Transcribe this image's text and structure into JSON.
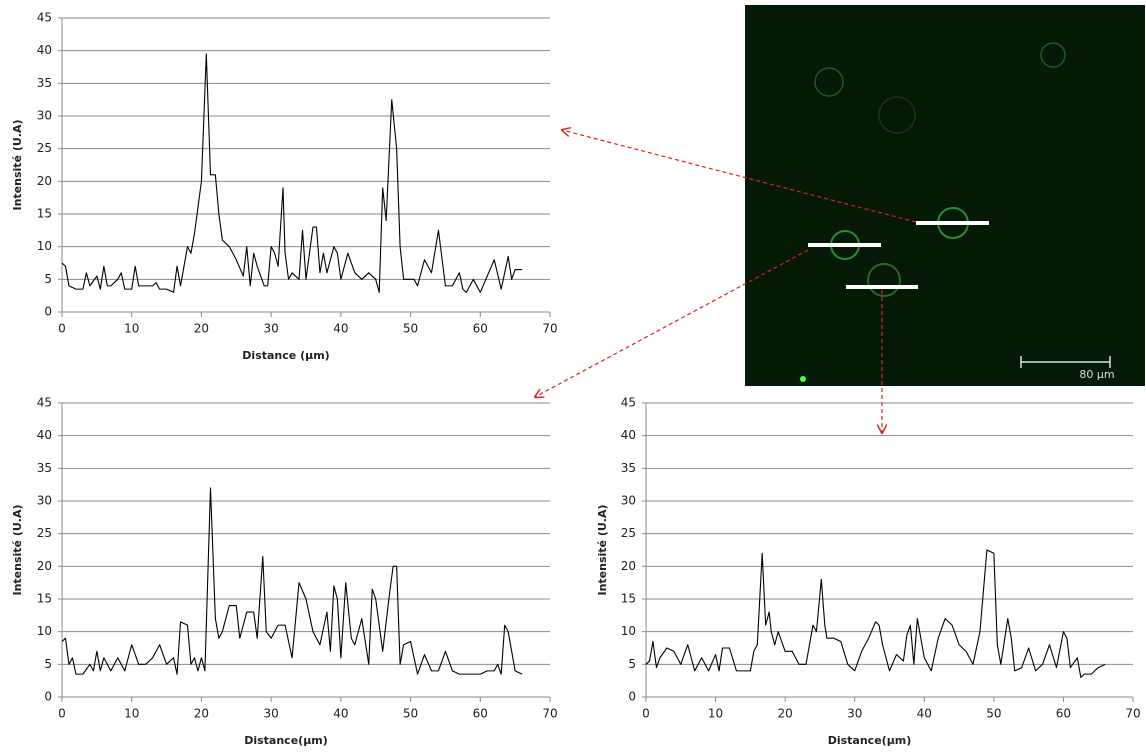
{
  "chart_data": [
    {
      "type": "line",
      "y_label": "Intensité (U.A)",
      "x_label": "Distance (µm)",
      "color": "#000000",
      "grid": true,
      "xlim": [
        0,
        70
      ],
      "ylim": [
        0,
        45
      ],
      "xticks": [
        0,
        10,
        20,
        30,
        40,
        50,
        60,
        70
      ],
      "yticks": [
        0,
        5,
        10,
        15,
        20,
        25,
        30,
        35,
        40,
        45
      ],
      "x": [
        0,
        0.5,
        1,
        2,
        3,
        3.5,
        4,
        5,
        5.5,
        6,
        6.5,
        7,
        8,
        8.5,
        9,
        10,
        10.5,
        11,
        12,
        13,
        13.5,
        14,
        15,
        16,
        16.5,
        17,
        18,
        18.5,
        19,
        20,
        20.7,
        21.3,
        22,
        22.5,
        23,
        24,
        25,
        26,
        26.5,
        27,
        27.5,
        28,
        29,
        29.5,
        30,
        30.5,
        31,
        31.7,
        32,
        32.5,
        33,
        34,
        34.5,
        35,
        36,
        36.5,
        37,
        37.5,
        38,
        39,
        39.5,
        40,
        41,
        42,
        43,
        44,
        45,
        45.5,
        46,
        46.5,
        47.3,
        48,
        48.5,
        49,
        50,
        50.5,
        51,
        52,
        53,
        54,
        55,
        56,
        57,
        57.5,
        58,
        59,
        60,
        61,
        62,
        63,
        64,
        64.5,
        65,
        66
      ],
      "values": [
        7.5,
        7,
        4,
        3.5,
        3.5,
        6,
        4,
        5.5,
        3.5,
        7,
        4,
        4,
        5,
        6,
        3.5,
        3.5,
        7,
        4,
        4,
        4,
        4.5,
        3.5,
        3.5,
        3,
        7,
        4,
        10,
        9,
        12,
        20,
        39.5,
        21,
        21,
        15,
        11,
        10,
        8,
        5.5,
        10,
        4,
        9,
        7,
        4,
        4,
        10,
        9,
        7,
        19,
        9,
        5,
        6,
        5,
        12.5,
        5,
        13,
        13,
        6,
        9,
        6,
        10,
        9,
        5,
        9,
        6,
        5,
        6,
        5,
        3,
        19,
        14,
        32.5,
        25,
        10,
        5,
        5,
        5,
        4,
        8,
        6,
        12.5,
        4,
        4,
        6,
        3.5,
        3,
        5,
        3,
        5.5,
        8,
        3.5,
        8.5,
        5,
        6.5,
        6.5
      ]
    },
    {
      "type": "line",
      "y_label": "Intensité (U.A)",
      "x_label": "Distance(µm)",
      "color": "#000000",
      "grid": true,
      "xlim": [
        0,
        70
      ],
      "ylim": [
        0,
        45
      ],
      "xticks": [
        0,
        10,
        20,
        30,
        40,
        50,
        60,
        70
      ],
      "yticks": [
        0,
        5,
        10,
        15,
        20,
        25,
        30,
        35,
        40,
        45
      ],
      "x": [
        0,
        0.5,
        1,
        1.5,
        2,
        3,
        4,
        4.5,
        5,
        5.5,
        6,
        7,
        8,
        9,
        10,
        11,
        12,
        13,
        14,
        15,
        16,
        16.5,
        17,
        18,
        18.5,
        19,
        19.5,
        20,
        20.5,
        21.3,
        22,
        22.5,
        23,
        24,
        25,
        25.5,
        26,
        26.5,
        27.5,
        28,
        28.8,
        29.3,
        30,
        31,
        32,
        33,
        34,
        35,
        36,
        37,
        38,
        38.5,
        39,
        39.5,
        40,
        40.7,
        41.5,
        42,
        43,
        44,
        44.5,
        45,
        46,
        47,
        47.5,
        48,
        48.5,
        49,
        50,
        51,
        52,
        53,
        54,
        55,
        56,
        57,
        58,
        59,
        60,
        61,
        62,
        62.5,
        63,
        63.5,
        64,
        65,
        66
      ],
      "values": [
        8.5,
        9,
        5,
        6,
        3.5,
        3.5,
        5,
        4,
        7,
        4,
        6,
        4,
        6,
        4,
        8,
        5,
        5,
        6,
        8,
        5,
        6,
        3.5,
        11.5,
        11,
        5,
        6,
        4,
        6,
        4,
        32,
        12,
        9,
        10,
        14,
        14,
        9,
        11,
        13,
        13,
        9,
        21.5,
        10,
        9,
        11,
        11,
        6,
        17.5,
        15,
        10,
        8,
        13,
        7,
        17,
        15,
        6,
        17.5,
        9,
        8,
        12,
        5,
        16.5,
        15,
        7,
        16,
        20,
        20,
        5,
        8,
        8.5,
        3.5,
        6.5,
        4,
        4,
        7,
        4,
        3.5,
        3.5,
        3.5,
        3.5,
        4,
        4,
        5,
        3.5,
        11,
        10,
        4,
        3.5
      ]
    },
    {
      "type": "line",
      "y_label": "Intensité (U.A)",
      "x_label": "Distance(µm)",
      "color": "#000000",
      "grid": true,
      "xlim": [
        0,
        70
      ],
      "ylim": [
        0,
        45
      ],
      "xticks": [
        0,
        10,
        20,
        30,
        40,
        50,
        60,
        70
      ],
      "yticks": [
        0,
        5,
        10,
        15,
        20,
        25,
        30,
        35,
        40,
        45
      ],
      "x": [
        0,
        0.5,
        1,
        1.5,
        2,
        3,
        4,
        5,
        6,
        7,
        8,
        9,
        10,
        10.5,
        11,
        12,
        13,
        14,
        15,
        15.5,
        16,
        16.7,
        17.2,
        17.7,
        18,
        18.5,
        19,
        20,
        21,
        22,
        23,
        24,
        24.5,
        25.2,
        25.7,
        26,
        27,
        28,
        29,
        30,
        31,
        32,
        33,
        33.5,
        34,
        35,
        36,
        37,
        37.5,
        38,
        38.5,
        39,
        40,
        41,
        42,
        43,
        44,
        45,
        46,
        47,
        48,
        49,
        50,
        50.5,
        51,
        52,
        52.5,
        53,
        54,
        55,
        56,
        57,
        58,
        59,
        60,
        60.5,
        61,
        62,
        62.5,
        63,
        64,
        65,
        66
      ],
      "values": [
        5,
        5.5,
        8.5,
        4.5,
        6,
        7.5,
        7,
        5,
        8,
        4,
        6,
        4,
        6.5,
        4,
        7.5,
        7.5,
        4,
        4,
        4,
        7,
        8,
        22,
        11,
        13,
        10,
        8,
        10,
        7,
        7,
        5,
        5,
        11,
        10,
        18,
        11,
        9,
        9,
        8.5,
        5,
        4,
        7,
        9,
        11.5,
        11,
        8,
        4,
        6.5,
        5.5,
        9.5,
        11,
        5,
        12,
        6,
        4,
        9,
        12,
        11,
        8,
        7,
        5,
        10,
        22.5,
        22,
        8,
        5,
        12,
        9,
        4,
        4.5,
        7.5,
        4,
        5,
        8,
        4.5,
        10,
        9,
        4.5,
        6,
        3,
        3.5,
        3.5,
        4.5,
        5
      ]
    }
  ],
  "image": {
    "scale_label": "80 µm"
  }
}
